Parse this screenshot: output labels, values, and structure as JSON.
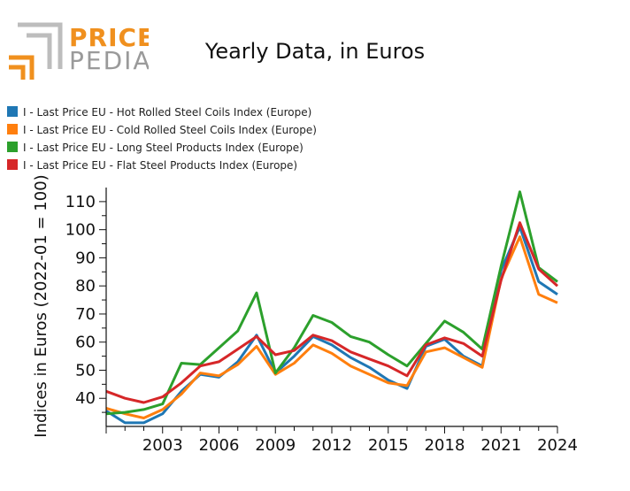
{
  "logo": {
    "part1": "PRICE",
    "part2": "PEDIA"
  },
  "chart_data": {
    "type": "line",
    "title": "Yearly Data, in Euros",
    "xlabel": "",
    "ylabel": "Indices in Euros (2022-01 = 100)",
    "xlim": [
      2000,
      2024
    ],
    "ylim": [
      30,
      115
    ],
    "xticks": [
      2003,
      2006,
      2009,
      2012,
      2015,
      2018,
      2021,
      2024
    ],
    "yticks": [
      40,
      50,
      60,
      70,
      80,
      90,
      100,
      110
    ],
    "legend_position": "top-left",
    "x": [
      2000,
      2001,
      2002,
      2003,
      2004,
      2005,
      2006,
      2007,
      2008,
      2009,
      2010,
      2011,
      2012,
      2013,
      2014,
      2015,
      2016,
      2017,
      2018,
      2019,
      2020,
      2021,
      2022,
      2023,
      2024
    ],
    "series": [
      {
        "name": "I - Last Price EU - Hot Rolled Steel Coils Index (Europe)",
        "color": "#1f77b4",
        "values": [
          35.5,
          31.3,
          31.3,
          34.5,
          42.5,
          48.5,
          47.5,
          53.0,
          62.5,
          49.0,
          55.0,
          62.0,
          59.0,
          54.5,
          51.0,
          46.5,
          43.5,
          58.5,
          61.0,
          55.0,
          51.5,
          85.5,
          101.0,
          81.5,
          77.0
        ]
      },
      {
        "name": "I - Last Price EU - Cold Rolled Steel Coils Index (Europe)",
        "color": "#ff7f0e",
        "values": [
          36.5,
          34.5,
          33.0,
          36.0,
          41.5,
          49.0,
          48.0,
          52.0,
          58.5,
          48.5,
          52.5,
          59.0,
          56.0,
          51.5,
          48.5,
          45.5,
          44.5,
          56.5,
          58.0,
          54.5,
          51.0,
          82.5,
          97.5,
          77.0,
          74.0
        ]
      },
      {
        "name": "I - Last Price EU - Long Steel Products Index (Europe)",
        "color": "#2ca02c",
        "values": [
          34.5,
          35.0,
          36.0,
          38.0,
          52.5,
          52.0,
          58.0,
          64.0,
          77.5,
          49.0,
          58.0,
          69.5,
          67.0,
          62.0,
          60.0,
          55.5,
          51.5,
          59.5,
          67.5,
          63.5,
          57.5,
          87.0,
          113.5,
          86.5,
          81.5
        ]
      },
      {
        "name": "I - Last Price EU - Flat Steel Products Index (Europe)",
        "color": "#d62728",
        "values": [
          42.5,
          40.0,
          38.5,
          40.5,
          45.5,
          51.5,
          53.0,
          57.5,
          62.0,
          55.5,
          57.0,
          62.5,
          60.5,
          56.5,
          54.0,
          51.5,
          48.0,
          59.0,
          61.5,
          59.5,
          55.0,
          82.0,
          102.5,
          86.0,
          80.0
        ]
      }
    ]
  }
}
